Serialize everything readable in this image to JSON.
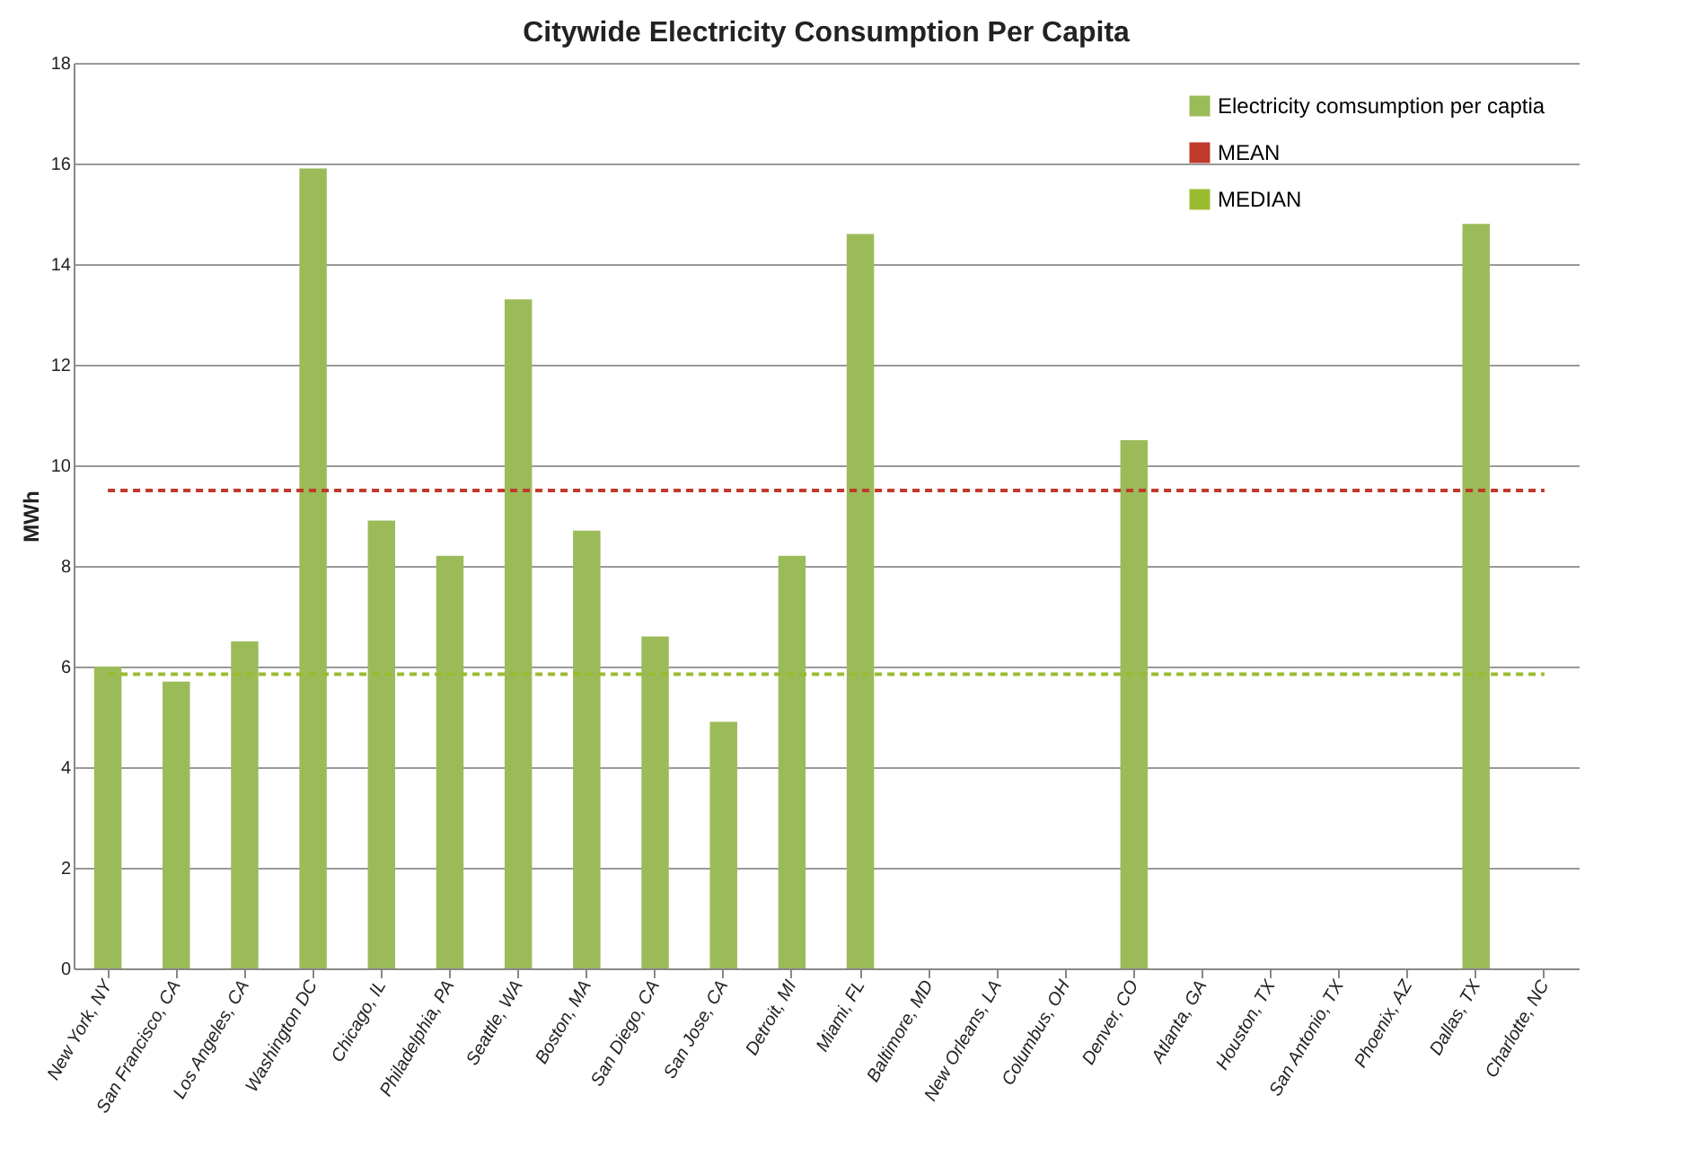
{
  "chart_data": {
    "type": "bar",
    "title": "Citywide Electricity Consumption Per Capita",
    "ylabel": "MWh",
    "categories": [
      "New York, NY",
      "San Francisco, CA",
      "Los Angeles, CA",
      "Washington DC",
      "Chicago, IL",
      "Philadelphia, PA",
      "Seattle, WA",
      "Boston, MA",
      "San Diego, CA",
      "San Jose, CA",
      "Detroit, MI",
      "Miami, FL",
      "Baltimore, MD",
      "New Orleans, LA",
      "Columbus, OH",
      "Denver, CO",
      "Atlanta, GA",
      "Houston, TX",
      "San Antonio, TX",
      "Phoenix, AZ",
      "Dallas, TX",
      "Charlotte, NC"
    ],
    "series": [
      {
        "name": "Electricity comsumption per captia",
        "color": "#9bbb59",
        "values": [
          6.0,
          5.7,
          6.5,
          15.9,
          8.9,
          8.2,
          13.3,
          8.7,
          6.6,
          4.9,
          8.2,
          14.6,
          null,
          null,
          null,
          10.5,
          null,
          null,
          null,
          null,
          14.8,
          null
        ]
      },
      {
        "name": "MEAN",
        "type": "line",
        "line_style": "dashed",
        "color": "#c0392b",
        "values": [
          9.5,
          9.5,
          9.5,
          9.5,
          9.5,
          9.5,
          9.5,
          9.5,
          9.5,
          9.5,
          9.5,
          9.5,
          9.5,
          9.5,
          9.5,
          9.5,
          9.5,
          9.5,
          9.5,
          9.5,
          9.5,
          9.5
        ]
      },
      {
        "name": "MEDIAN",
        "type": "line",
        "line_style": "dashed",
        "color": "#9bbb30",
        "values": [
          5.85,
          5.85,
          5.85,
          5.85,
          5.85,
          5.85,
          5.85,
          5.85,
          5.85,
          5.85,
          5.85,
          5.85,
          5.85,
          5.85,
          5.85,
          5.85,
          5.85,
          5.85,
          5.85,
          5.85,
          5.85,
          5.85
        ]
      }
    ],
    "ylim": [
      0,
      18
    ],
    "yticks": [
      0,
      2,
      4,
      6,
      8,
      10,
      12,
      14,
      16,
      18
    ],
    "grid": "y",
    "legend": "top right"
  }
}
